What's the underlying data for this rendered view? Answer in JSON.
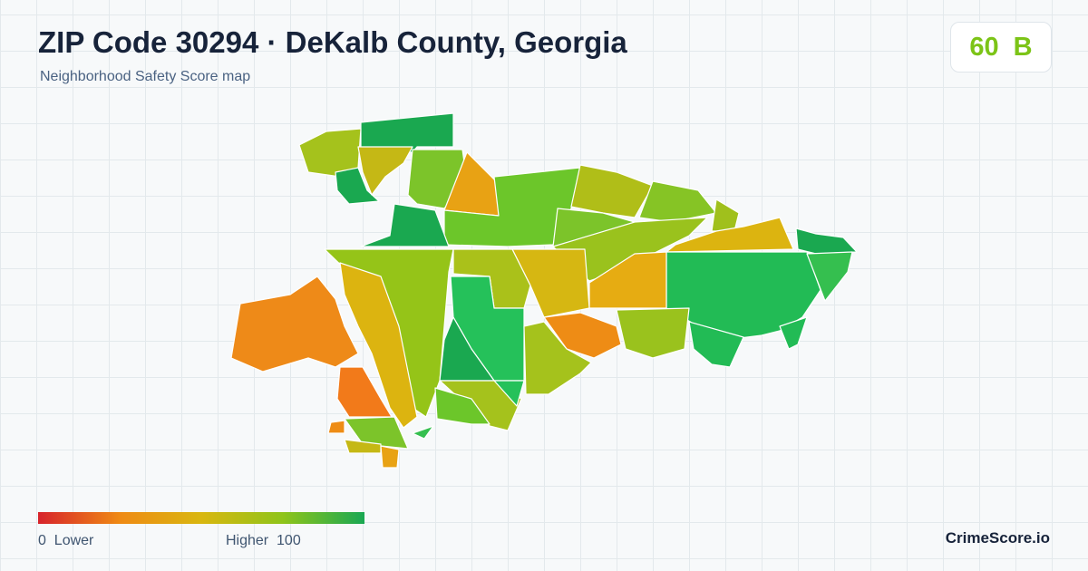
{
  "header": {
    "title": "ZIP Code 30294 · DeKalb County, Georgia",
    "subtitle": "Neighborhood Safety Score map"
  },
  "score": {
    "value": 60,
    "grade": "B"
  },
  "legend": {
    "min": 0,
    "min_label": "Lower",
    "max_label": "Higher",
    "max": 100
  },
  "brand": "CrimeScore.io"
}
